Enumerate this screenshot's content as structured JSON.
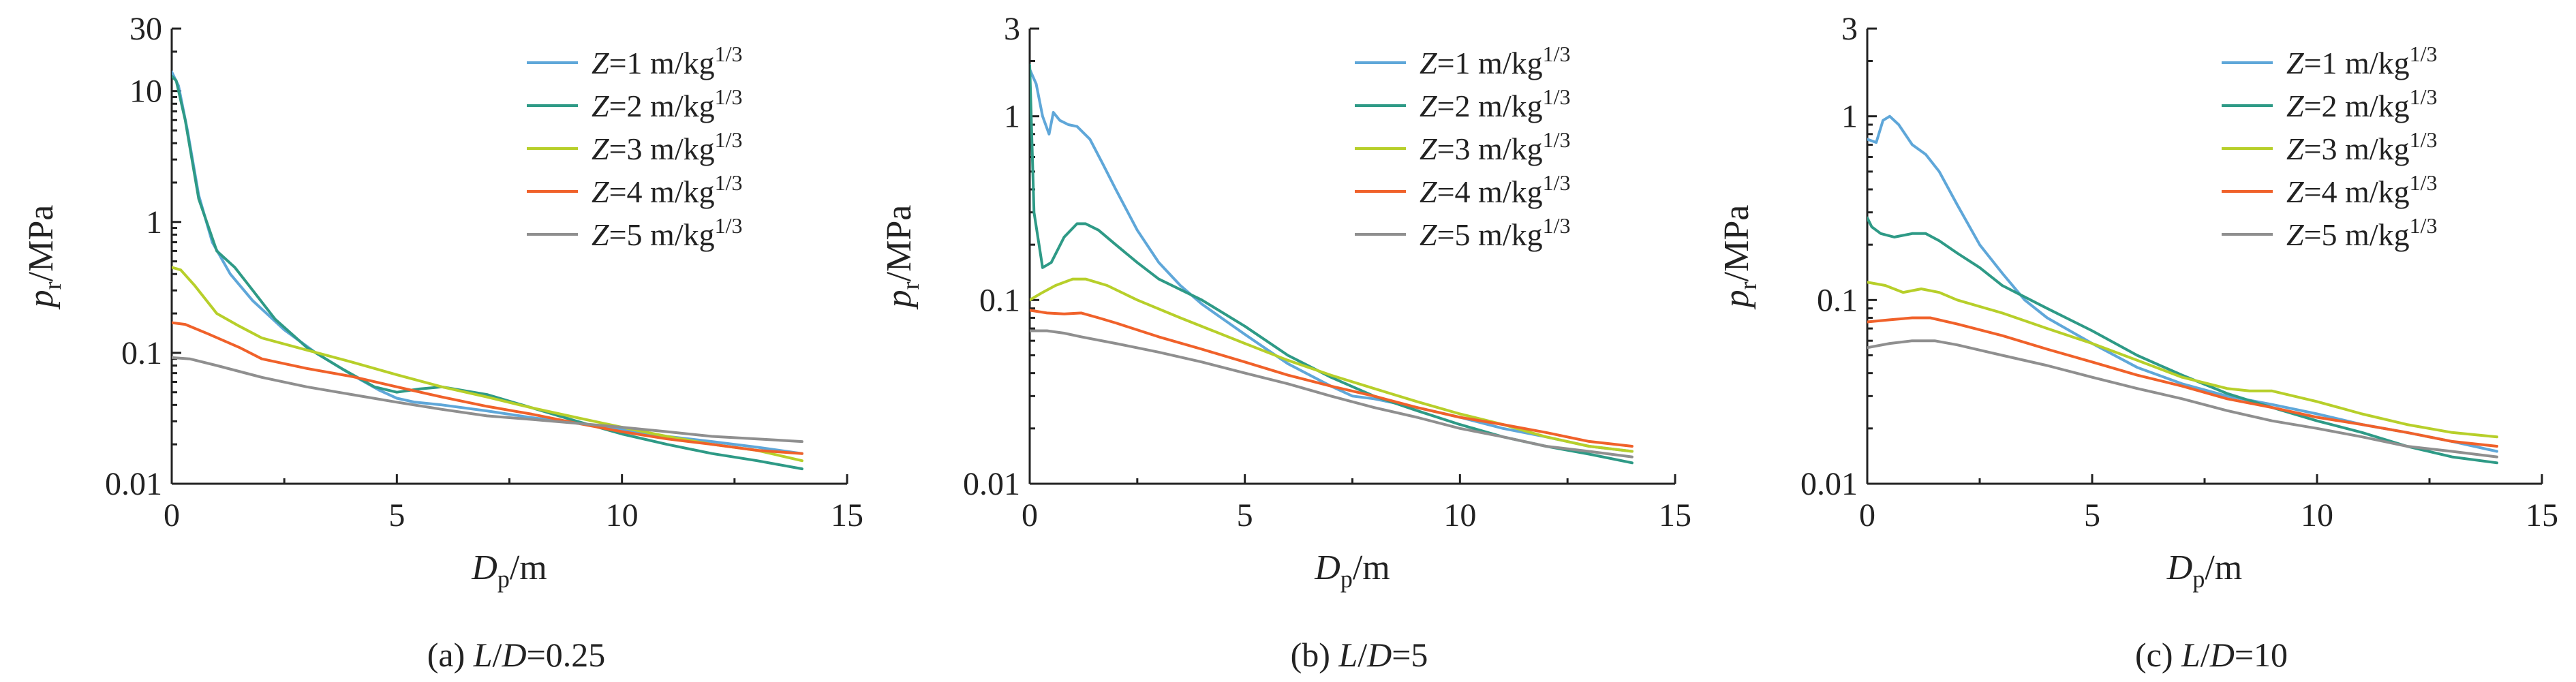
{
  "chart_data": [
    {
      "type": "line",
      "caption": "(a) L/D=0.25",
      "xlabel": "Dp/m",
      "ylabel": "pr/MPa",
      "xlim": [
        0,
        15
      ],
      "ylim": [
        0.01,
        30
      ],
      "yscale": "log",
      "xticks": [
        0,
        5,
        10,
        15
      ],
      "yticks": [
        0.01,
        0.1,
        1,
        10,
        30
      ],
      "legend_position": "top-right",
      "series": [
        {
          "name": "Z=1 m/kg1/3",
          "color": "#5fa7d9",
          "x": [
            0,
            0.15,
            0.35,
            0.6,
            0.9,
            1.3,
            1.8,
            2.5,
            3.2,
            4,
            4.6,
            5,
            5.4,
            6,
            7,
            8,
            9,
            10,
            11,
            12,
            13,
            14
          ],
          "y": [
            14,
            11,
            5,
            1.6,
            0.7,
            0.4,
            0.25,
            0.15,
            0.1,
            0.068,
            0.052,
            0.045,
            0.042,
            0.04,
            0.036,
            0.032,
            0.029,
            0.026,
            0.023,
            0.021,
            0.019,
            0.017
          ]
        },
        {
          "name": "Z=2 m/kg1/3",
          "color": "#2e9a86",
          "x": [
            0,
            0.1,
            0.3,
            0.6,
            1,
            1.4,
            1.8,
            2.3,
            3,
            3.8,
            4.5,
            5,
            5.5,
            6,
            7,
            8,
            9,
            10,
            11,
            12,
            13,
            14
          ],
          "y": [
            13,
            12,
            6,
            1.5,
            0.6,
            0.45,
            0.3,
            0.18,
            0.11,
            0.075,
            0.055,
            0.05,
            0.053,
            0.055,
            0.048,
            0.038,
            0.03,
            0.024,
            0.02,
            0.017,
            0.015,
            0.013
          ]
        },
        {
          "name": "Z=3 m/kg1/3",
          "color": "#b7cf2a",
          "x": [
            0,
            0.2,
            0.5,
            1,
            1.5,
            2,
            3,
            4,
            5,
            6,
            7,
            8,
            9,
            10,
            11,
            12,
            13,
            14
          ],
          "y": [
            0.45,
            0.43,
            0.33,
            0.2,
            0.16,
            0.13,
            0.105,
            0.085,
            0.068,
            0.055,
            0.046,
            0.038,
            0.032,
            0.027,
            0.023,
            0.02,
            0.018,
            0.015
          ]
        },
        {
          "name": "Z=4 m/kg1/3",
          "color": "#f0612a",
          "x": [
            0,
            0.3,
            0.8,
            1.5,
            2,
            3,
            4,
            5,
            6,
            7,
            8,
            9,
            10,
            11,
            12,
            13,
            14
          ],
          "y": [
            0.17,
            0.165,
            0.14,
            0.11,
            0.09,
            0.076,
            0.066,
            0.055,
            0.046,
            0.039,
            0.034,
            0.029,
            0.025,
            0.022,
            0.02,
            0.018,
            0.017
          ]
        },
        {
          "name": "Z=5 m/kg1/3",
          "color": "#8f8f8f",
          "x": [
            0,
            0.4,
            1,
            2,
            3,
            4,
            5,
            6,
            7,
            8,
            9,
            10,
            11,
            12,
            13,
            14
          ],
          "y": [
            0.092,
            0.09,
            0.08,
            0.065,
            0.055,
            0.048,
            0.042,
            0.037,
            0.033,
            0.031,
            0.029,
            0.027,
            0.025,
            0.023,
            0.022,
            0.021
          ]
        }
      ]
    },
    {
      "type": "line",
      "caption": "(b) L/D=5",
      "xlabel": "Dp/m",
      "ylabel": "pr/MPa",
      "xlim": [
        0,
        15
      ],
      "ylim": [
        0.01,
        3
      ],
      "yscale": "log",
      "xticks": [
        0,
        5,
        10,
        15
      ],
      "yticks": [
        0.01,
        0.1,
        1,
        3
      ],
      "legend_position": "top-right",
      "series": [
        {
          "name": "Z=1 m/kg1/3",
          "color": "#5fa7d9",
          "x": [
            0,
            0.15,
            0.3,
            0.45,
            0.55,
            0.7,
            0.9,
            1.1,
            1.4,
            1.7,
            2,
            2.5,
            3,
            3.5,
            4,
            5,
            6,
            7,
            7.5,
            8,
            9,
            10,
            11,
            12,
            13,
            14
          ],
          "y": [
            1.8,
            1.5,
            1.0,
            0.8,
            1.05,
            0.95,
            0.9,
            0.88,
            0.75,
            0.55,
            0.4,
            0.24,
            0.16,
            0.12,
            0.095,
            0.065,
            0.045,
            0.034,
            0.03,
            0.029,
            0.026,
            0.023,
            0.02,
            0.018,
            0.016,
            0.015
          ]
        },
        {
          "name": "Z=2 m/kg1/3",
          "color": "#2e9a86",
          "x": [
            0,
            0.1,
            0.3,
            0.5,
            0.8,
            1.1,
            1.3,
            1.6,
            2,
            2.5,
            3,
            4,
            5,
            6,
            7,
            8,
            9,
            10,
            11,
            12,
            13,
            14
          ],
          "y": [
            1.9,
            0.3,
            0.15,
            0.16,
            0.22,
            0.26,
            0.26,
            0.24,
            0.2,
            0.16,
            0.13,
            0.1,
            0.072,
            0.05,
            0.038,
            0.03,
            0.025,
            0.021,
            0.018,
            0.016,
            0.0145,
            0.013
          ]
        },
        {
          "name": "Z=3 m/kg1/3",
          "color": "#b7cf2a",
          "x": [
            0,
            0.3,
            0.6,
            1,
            1.3,
            1.8,
            2.5,
            3.5,
            5,
            6,
            7,
            8,
            9,
            10,
            11,
            12,
            13,
            14
          ],
          "y": [
            0.1,
            0.11,
            0.12,
            0.13,
            0.13,
            0.12,
            0.1,
            0.08,
            0.058,
            0.047,
            0.039,
            0.033,
            0.028,
            0.024,
            0.021,
            0.018,
            0.016,
            0.015
          ]
        },
        {
          "name": "Z=4 m/kg1/3",
          "color": "#f0612a",
          "x": [
            0,
            0.4,
            0.8,
            1.2,
            1.6,
            2,
            3,
            4,
            5,
            6,
            7,
            8,
            9,
            10,
            11,
            12,
            13,
            14
          ],
          "y": [
            0.088,
            0.085,
            0.084,
            0.085,
            0.08,
            0.075,
            0.063,
            0.054,
            0.046,
            0.039,
            0.034,
            0.03,
            0.026,
            0.023,
            0.021,
            0.019,
            0.017,
            0.016
          ]
        },
        {
          "name": "Z=5 m/kg1/3",
          "color": "#8f8f8f",
          "x": [
            0,
            0.4,
            0.8,
            1.2,
            2,
            3,
            4,
            5,
            6,
            7,
            8,
            9,
            10,
            11,
            12,
            13,
            14
          ],
          "y": [
            0.068,
            0.068,
            0.066,
            0.063,
            0.058,
            0.052,
            0.046,
            0.04,
            0.035,
            0.03,
            0.026,
            0.023,
            0.02,
            0.018,
            0.016,
            0.015,
            0.014
          ]
        }
      ]
    },
    {
      "type": "line",
      "caption": "(c) L/D=10",
      "xlabel": "Dp/m",
      "ylabel": "pr/MPa",
      "xlim": [
        0,
        15
      ],
      "ylim": [
        0.01,
        3
      ],
      "yscale": "log",
      "xticks": [
        0,
        5,
        10,
        15
      ],
      "yticks": [
        0.01,
        0.1,
        1,
        3
      ],
      "legend_position": "top-right",
      "series": [
        {
          "name": "Z=1 m/kg1/3",
          "color": "#5fa7d9",
          "x": [
            0,
            0.2,
            0.35,
            0.5,
            0.7,
            1,
            1.3,
            1.6,
            2,
            2.5,
            3,
            3.5,
            4,
            5,
            6,
            7,
            8,
            9,
            10,
            11,
            12,
            13,
            14
          ],
          "y": [
            0.75,
            0.72,
            0.95,
            1.0,
            0.9,
            0.7,
            0.62,
            0.5,
            0.33,
            0.2,
            0.14,
            0.1,
            0.08,
            0.058,
            0.043,
            0.035,
            0.03,
            0.027,
            0.024,
            0.021,
            0.019,
            0.017,
            0.015
          ]
        },
        {
          "name": "Z=2 m/kg1/3",
          "color": "#2e9a86",
          "x": [
            0,
            0.1,
            0.3,
            0.6,
            1,
            1.3,
            1.6,
            2,
            2.5,
            3,
            4,
            5,
            6,
            7,
            8,
            9,
            10,
            11,
            12,
            13,
            14
          ],
          "y": [
            0.28,
            0.25,
            0.23,
            0.22,
            0.23,
            0.23,
            0.21,
            0.18,
            0.15,
            0.12,
            0.09,
            0.068,
            0.05,
            0.039,
            0.031,
            0.026,
            0.022,
            0.019,
            0.016,
            0.014,
            0.013
          ]
        },
        {
          "name": "Z=3 m/kg1/3",
          "color": "#b7cf2a",
          "x": [
            0,
            0.4,
            0.8,
            1.2,
            1.6,
            2,
            3,
            4,
            5,
            6,
            7,
            8,
            8.5,
            9,
            10,
            11,
            12,
            13,
            14
          ],
          "y": [
            0.125,
            0.12,
            0.11,
            0.115,
            0.11,
            0.1,
            0.085,
            0.07,
            0.058,
            0.047,
            0.038,
            0.033,
            0.032,
            0.032,
            0.028,
            0.024,
            0.021,
            0.019,
            0.018
          ]
        },
        {
          "name": "Z=4 m/kg1/3",
          "color": "#f0612a",
          "x": [
            0,
            0.5,
            1,
            1.4,
            2,
            3,
            4,
            5,
            6,
            7,
            8,
            9,
            10,
            11,
            12,
            13,
            14
          ],
          "y": [
            0.076,
            0.078,
            0.08,
            0.08,
            0.074,
            0.064,
            0.054,
            0.046,
            0.039,
            0.034,
            0.029,
            0.026,
            0.023,
            0.021,
            0.019,
            0.017,
            0.016
          ]
        },
        {
          "name": "Z=5 m/kg1/3",
          "color": "#8f8f8f",
          "x": [
            0,
            0.5,
            1,
            1.5,
            2,
            3,
            4,
            5,
            6,
            7,
            8,
            9,
            10,
            11,
            12,
            13,
            14
          ],
          "y": [
            0.055,
            0.058,
            0.06,
            0.06,
            0.057,
            0.05,
            0.044,
            0.038,
            0.033,
            0.029,
            0.025,
            0.022,
            0.02,
            0.018,
            0.016,
            0.015,
            0.014
          ]
        }
      ]
    }
  ]
}
